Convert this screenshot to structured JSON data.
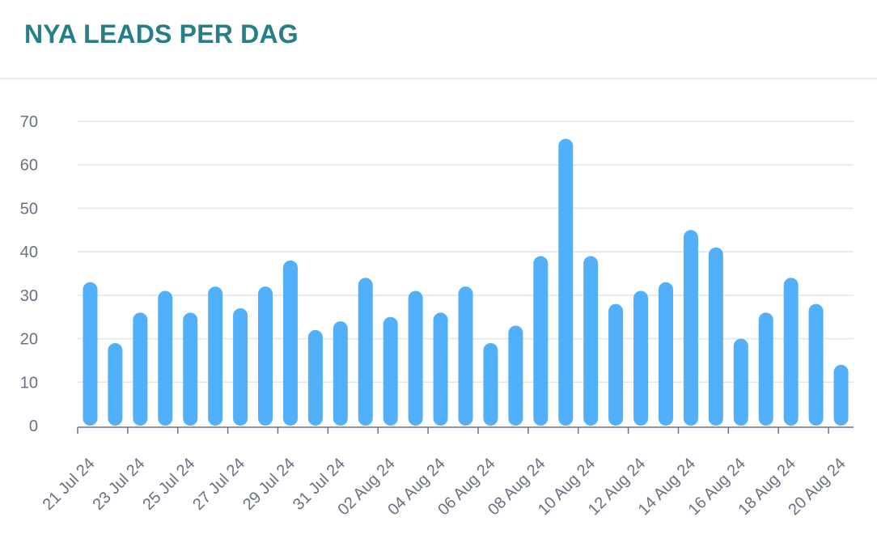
{
  "header": {
    "title": "NYA LEADS PER DAG"
  },
  "colors": {
    "bar": "#52b0fb",
    "grid": "#e3e5ef",
    "axis": "#6b7180",
    "title": "#267f86"
  },
  "chart_data": {
    "type": "bar",
    "title": "NYA LEADS PER DAG",
    "xlabel": "",
    "ylabel": "",
    "ylim": [
      0,
      70
    ],
    "yticks": [
      0,
      10,
      20,
      30,
      40,
      50,
      60,
      70
    ],
    "grid": true,
    "categories": [
      "21 Jul 24",
      "22 Jul 24",
      "23 Jul 24",
      "24 Jul 24",
      "25 Jul 24",
      "26 Jul 24",
      "27 Jul 24",
      "28 Jul 24",
      "29 Jul 24",
      "30 Jul 24",
      "31 Jul 24",
      "01 Aug 24",
      "02 Aug 24",
      "03 Aug 24",
      "04 Aug 24",
      "05 Aug 24",
      "06 Aug 24",
      "07 Aug 24",
      "08 Aug 24",
      "09 Aug 24",
      "10 Aug 24",
      "11 Aug 24",
      "12 Aug 24",
      "13 Aug 24",
      "14 Aug 24",
      "15 Aug 24",
      "16 Aug 24",
      "17 Aug 24",
      "18 Aug 24",
      "19 Aug 24",
      "20 Aug 24"
    ],
    "xtick_labels": [
      "21 Jul 24",
      "23 Jul 24",
      "25 Jul 24",
      "27 Jul 24",
      "29 Jul 24",
      "31 Jul 24",
      "02 Aug 24",
      "04 Aug 24",
      "06 Aug 24",
      "08 Aug 24",
      "10 Aug 24",
      "12 Aug 24",
      "14 Aug 24",
      "16 Aug 24",
      "18 Aug 24",
      "20 Aug 24"
    ],
    "values": [
      33,
      19,
      26,
      31,
      26,
      32,
      27,
      32,
      38,
      22,
      24,
      34,
      25,
      31,
      26,
      32,
      19,
      23,
      39,
      66,
      39,
      28,
      31,
      33,
      45,
      41,
      20,
      26,
      34,
      28,
      14
    ]
  }
}
